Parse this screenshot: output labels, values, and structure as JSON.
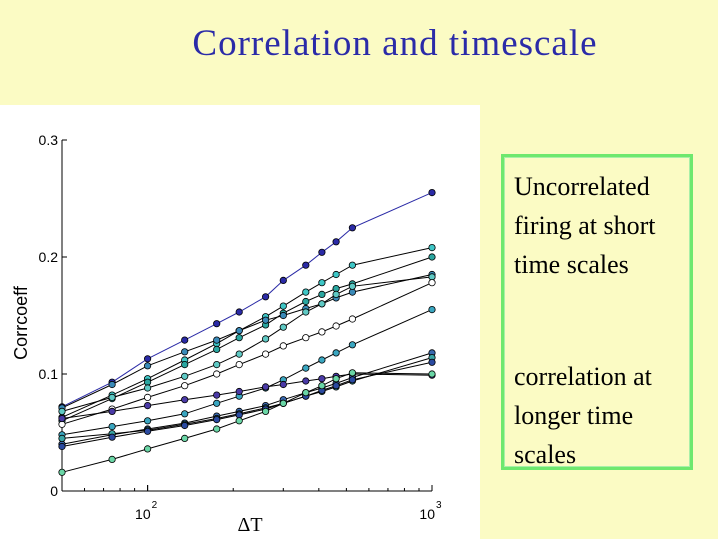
{
  "slide": {
    "title": "Correlation and timescale"
  },
  "notes": {
    "first": "Uncorrelated firing at short time scales",
    "second": "correlation at longer time scales"
  },
  "chart_data": {
    "type": "line",
    "xlabel": "ΔT",
    "ylabel": "Corrcoeff",
    "xscale": "log",
    "xlim": [
      50,
      1000
    ],
    "ylim": [
      0,
      0.3
    ],
    "y_ticks": [
      "0",
      "0.1",
      "0.2",
      "0.3"
    ],
    "x_ticks": [
      {
        "value": 100,
        "base": "10",
        "exp": "2"
      },
      {
        "value": 1000,
        "base": "10",
        "exp": "3"
      }
    ],
    "x": [
      50,
      75,
      100,
      135,
      175,
      210,
      260,
      300,
      360,
      410,
      460,
      525,
      1000
    ],
    "grid": false,
    "legend": "none",
    "series": [
      {
        "color": "#2a2aa6",
        "fill": "#2a2aa6",
        "values": [
          0.072,
          0.093,
          0.113,
          0.129,
          0.143,
          0.153,
          0.166,
          0.18,
          0.193,
          0.204,
          0.213,
          0.225,
          0.255
        ]
      },
      {
        "color": "#000000",
        "fill": "#3ec6c6",
        "values": [
          0.063,
          0.082,
          0.096,
          0.112,
          0.126,
          0.137,
          0.149,
          0.158,
          0.17,
          0.178,
          0.185,
          0.193,
          0.208
        ]
      },
      {
        "color": "#000000",
        "fill": "#2aa6a0",
        "values": [
          0.06,
          0.079,
          0.093,
          0.108,
          0.121,
          0.131,
          0.142,
          0.152,
          0.162,
          0.168,
          0.173,
          0.177,
          0.2
        ]
      },
      {
        "color": "#000000",
        "fill": "#3a8ab8",
        "values": [
          0.071,
          0.091,
          0.107,
          0.119,
          0.129,
          0.137,
          0.146,
          0.15,
          0.156,
          0.16,
          0.165,
          0.17,
          0.185
        ]
      },
      {
        "color": "#000000",
        "fill": "#5fc9c4",
        "values": [
          0.068,
          0.08,
          0.088,
          0.098,
          0.108,
          0.117,
          0.13,
          0.14,
          0.153,
          0.16,
          0.168,
          0.175,
          0.183
        ]
      },
      {
        "color": "#000000",
        "fill": "#ffffff",
        "values": [
          0.057,
          0.07,
          0.08,
          0.09,
          0.1,
          0.108,
          0.117,
          0.124,
          0.131,
          0.136,
          0.141,
          0.147,
          0.178
        ]
      },
      {
        "color": "#000000",
        "fill": "#3aa6c0",
        "values": [
          0.048,
          0.055,
          0.06,
          0.066,
          0.075,
          0.081,
          0.088,
          0.095,
          0.105,
          0.112,
          0.118,
          0.125,
          0.155
        ]
      },
      {
        "color": "#000000",
        "fill": "#4a3aa6",
        "values": [
          0.062,
          0.068,
          0.073,
          0.078,
          0.082,
          0.085,
          0.089,
          0.091,
          0.094,
          0.096,
          0.098,
          0.1,
          0.099
        ]
      },
      {
        "color": "#000000",
        "fill": "#3a6ab0",
        "values": [
          0.04,
          0.048,
          0.053,
          0.058,
          0.064,
          0.068,
          0.073,
          0.078,
          0.084,
          0.088,
          0.092,
          0.097,
          0.118
        ]
      },
      {
        "color": "#000000",
        "fill": "#3aa6a6",
        "values": [
          0.045,
          0.049,
          0.052,
          0.057,
          0.062,
          0.066,
          0.071,
          0.075,
          0.081,
          0.085,
          0.089,
          0.094,
          0.114
        ]
      },
      {
        "color": "#000000",
        "fill": "#2a4aa0",
        "values": [
          0.038,
          0.046,
          0.051,
          0.056,
          0.061,
          0.065,
          0.07,
          0.075,
          0.081,
          0.086,
          0.09,
          0.095,
          0.11
        ]
      },
      {
        "color": "#000000",
        "fill": "#6ad6a6",
        "values": [
          0.016,
          0.027,
          0.036,
          0.045,
          0.053,
          0.06,
          0.068,
          0.075,
          0.084,
          0.09,
          0.096,
          0.101,
          0.1
        ]
      }
    ]
  }
}
